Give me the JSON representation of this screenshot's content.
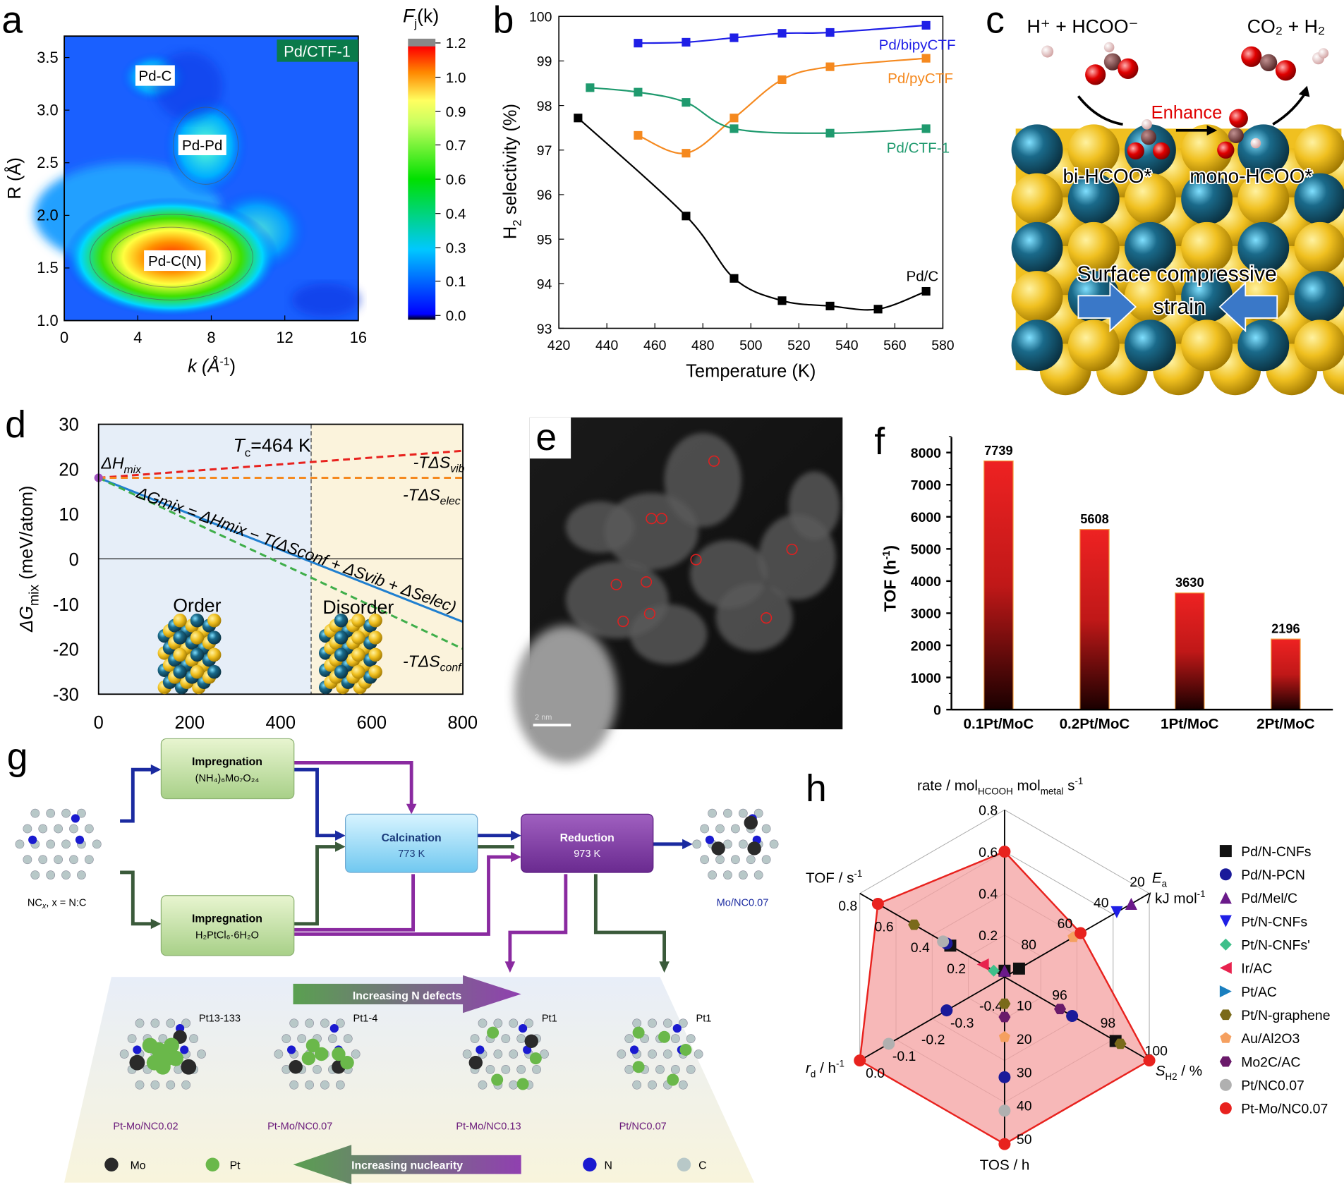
{
  "panels": {
    "a": "a",
    "b": "b",
    "c": "c",
    "d": "d",
    "e": "e",
    "f": "f",
    "g": "g",
    "h": "h"
  },
  "panel_a": {
    "sample_label": "Pd/CTF-1",
    "peak_labels": [
      "Pd-C",
      "Pd-Pd",
      "Pd-C(N)"
    ],
    "xlabel": "k (Å",
    "xlabel_sup": "-1",
    "xlabel_end": ")",
    "ylabel": "R (Å)",
    "x_ticks": [
      "0",
      "4",
      "8",
      "12",
      "16"
    ],
    "y_ticks": [
      "1.0",
      "1.5",
      "2.0",
      "2.5",
      "3.0",
      "3.5"
    ],
    "colorbar_title": "F",
    "colorbar_title_sub": "j",
    "colorbar_title_end": "(k)",
    "colorbar_ticks": [
      "0.0",
      "0.1",
      "0.3",
      "0.4",
      "0.6",
      "0.7",
      "0.9",
      "1.0",
      "1.2"
    ]
  },
  "chart_data": [
    {
      "panel": "b",
      "type": "line",
      "xlabel": "Temperature (K)",
      "ylabel": "H2 selectivity (%)",
      "xlim": [
        420,
        580
      ],
      "ylim": [
        93,
        100
      ],
      "x_ticks": [
        420,
        440,
        460,
        480,
        500,
        520,
        540,
        560,
        580
      ],
      "y_ticks": [
        93,
        94,
        95,
        96,
        97,
        98,
        99,
        100
      ],
      "series": [
        {
          "name": "Pd/bipyCTF",
          "color": "#1f1fe6",
          "x": [
            453,
            473,
            493,
            513,
            533,
            573
          ],
          "y": [
            99.4,
            99.42,
            99.52,
            99.62,
            99.64,
            99.8
          ]
        },
        {
          "name": "Pd/pyCTF",
          "color": "#f5891f",
          "x": [
            453,
            473,
            493,
            513,
            533,
            573
          ],
          "y": [
            97.33,
            96.93,
            97.72,
            98.58,
            98.87,
            99.06
          ]
        },
        {
          "name": "Pd/CTF-1",
          "color": "#1f9a6e",
          "x": [
            433,
            453,
            473,
            493,
            533,
            573
          ],
          "y": [
            98.4,
            98.3,
            98.07,
            97.48,
            97.38,
            97.48
          ]
        },
        {
          "name": "Pd/C",
          "color": "#000000",
          "x": [
            428,
            473,
            493,
            513,
            533,
            553,
            573
          ],
          "y": [
            97.72,
            95.52,
            94.12,
            93.62,
            93.5,
            93.43,
            93.83
          ]
        }
      ]
    },
    {
      "panel": "d",
      "type": "line",
      "xlabel": "",
      "ylabel": "ΔG",
      "ylabel_sub": "mix",
      "ylabel_end": " (meV/atom)",
      "xlim": [
        0,
        800
      ],
      "ylim": [
        -30,
        30
      ],
      "x_ticks": [
        0,
        200,
        400,
        600,
        800
      ],
      "y_ticks": [
        -30,
        -20,
        -10,
        0,
        10,
        20,
        30
      ],
      "tc_value": 464,
      "tc_label": "T",
      "tc_sub": "c",
      "tc_end": "=464 K",
      "order_label": "Order",
      "disorder_label": "Disorder",
      "dh_label": "ΔH",
      "dh_sub": "mix",
      "equation": "ΔGmix = ΔHmix − T(ΔSconf + ΔSvib + ΔSelec)",
      "series": [
        {
          "name": "-TΔSvib",
          "label": "-TΔS",
          "label_sub": "vib",
          "color": "#e8221e",
          "dash": true,
          "x": [
            0,
            800
          ],
          "y": [
            18,
            24
          ]
        },
        {
          "name": "-TΔSelec",
          "label": "-TΔS",
          "label_sub": "elec",
          "color": "#f5891f",
          "dash": true,
          "x": [
            0,
            800
          ],
          "y": [
            18,
            18
          ]
        },
        {
          "name": "ΔGmix",
          "color": "#1f7fd0",
          "dash": false,
          "x": [
            0,
            800
          ],
          "y": [
            18,
            -14
          ]
        },
        {
          "name": "-TΔSconf",
          "label": "-TΔS",
          "label_sub": "conf",
          "color": "#3fae4a",
          "dash": true,
          "x": [
            0,
            800
          ],
          "y": [
            18,
            -20
          ]
        }
      ]
    },
    {
      "panel": "f",
      "type": "bar",
      "ylabel": "TOF (h",
      "ylabel_sup": "-1",
      "ylabel_end": ")",
      "ylim": [
        0,
        8000
      ],
      "y_ticks": [
        0,
        1000,
        2000,
        3000,
        4000,
        5000,
        6000,
        7000,
        8000
      ],
      "categories": [
        "0.1Pt/MoC",
        "0.2Pt/MoC",
        "1Pt/MoC",
        "2Pt/MoC"
      ],
      "values": [
        7739,
        5608,
        3630,
        2196
      ],
      "data_labels": [
        "7739",
        "5608",
        "3630",
        "2196"
      ],
      "color": "#e8221e"
    },
    {
      "panel": "h",
      "type": "radar",
      "axes": [
        {
          "label": "rate / mol",
          "sub1": "HCOOH",
          "mid": " mol",
          "sub2": "metal",
          "end": " s",
          "sup": "-1",
          "range": [
            0,
            0.8
          ],
          "ticks": [
            "0.2",
            "0.4",
            "0.6",
            "0.8"
          ]
        },
        {
          "label": "E",
          "sub1": "a",
          "end": "/ kJ mol",
          "sup": "-1",
          "range": [
            100,
            20
          ],
          "ticks": [
            "80",
            "60",
            "40",
            "20"
          ]
        },
        {
          "label": "S",
          "sub1": "H2",
          "end": " / %",
          "range": [
            94,
            100
          ],
          "ticks": [
            "96",
            "98",
            "100"
          ]
        },
        {
          "label": "TOS / h",
          "range": [
            0,
            50
          ],
          "ticks": [
            "10",
            "20",
            "30",
            "40",
            "50"
          ]
        },
        {
          "label": "r",
          "sub1": "d",
          "end": " / h",
          "sup": "-1",
          "range": [
            -0.5,
            0.0
          ],
          "ticks": [
            "-0.4",
            "-0.3",
            "-0.2",
            "-0.1",
            "0.0"
          ]
        },
        {
          "label": "TOF / s",
          "sup": "-1",
          "range": [
            0,
            0.8
          ],
          "ticks": [
            "0.2",
            "0.4",
            "0.6",
            "0.8"
          ]
        }
      ],
      "series": [
        {
          "name": "Pd/N-CNFs",
          "marker": "square",
          "color": "#111111",
          "values": [
            0.03,
            92,
            98.6,
            null,
            null,
            0.3
          ]
        },
        {
          "name": "Pd/N-PCN",
          "marker": "circle",
          "color": "#1a1a9a",
          "values": [
            null,
            null,
            96.8,
            30,
            -0.3,
            0.32
          ]
        },
        {
          "name": "Pd/Mel/C",
          "marker": "triangle-up",
          "color": "#6a1a8a",
          "values": [
            0.03,
            30,
            null,
            null,
            null,
            null
          ]
        },
        {
          "name": "Pt/N-CNFs",
          "marker": "triangle-down",
          "color": "#1f1fe6",
          "values": [
            null,
            38,
            null,
            null,
            null,
            null
          ]
        },
        {
          "name": "Pt/N-CNFs'",
          "marker": "diamond",
          "color": "#3fbf8a",
          "values": [
            null,
            null,
            null,
            null,
            null,
            0.06
          ]
        },
        {
          "name": "Ir/AC",
          "marker": "triangle-left",
          "color": "#e8224e",
          "values": [
            null,
            null,
            null,
            null,
            null,
            0.12
          ]
        },
        {
          "name": "Pt/AC",
          "marker": "triangle-right",
          "color": "#1a7fbf",
          "values": [
            null,
            null,
            null,
            null,
            null,
            null
          ]
        },
        {
          "name": "Pt/N-graphene",
          "marker": "hexagon",
          "color": "#7a6a1a",
          "values": [
            null,
            null,
            98.8,
            8,
            null,
            0.5
          ]
        },
        {
          "name": "Au/Al2O3",
          "marker": "pentagon",
          "color": "#f5a060",
          "values": [
            null,
            62,
            null,
            18,
            null,
            null
          ]
        },
        {
          "name": "Mo2C/AC",
          "marker": "hexagon",
          "color": "#6a1a6a",
          "values": [
            null,
            null,
            96.3,
            12,
            null,
            null
          ]
        },
        {
          "name": "Pt/NC0.07",
          "marker": "circle",
          "color": "#b0b0b0",
          "values": [
            null,
            null,
            null,
            40,
            -0.1,
            0.34
          ]
        },
        {
          "name": "Pt-Mo/NC0.07",
          "marker": "circle",
          "color": "#e8221e",
          "values": [
            0.6,
            58,
            100,
            50,
            0.0,
            0.7
          ],
          "filled_area": true
        }
      ]
    }
  ],
  "panel_c": {
    "reactants": "H⁺ + HCOO⁻",
    "products": "CO₂ + H₂",
    "enhance": "Enhance",
    "bi": "bi-HCOO*",
    "mono": "mono-HCOO*",
    "strain1": "Surface compressive",
    "strain2": "strain"
  },
  "panel_e": {
    "scale_bar": "2 nm"
  },
  "panel_f_legend": {},
  "panel_g": {
    "start_label": "NC",
    "start_sub": "x",
    "start_end": ", x = N:C",
    "impreg1_title": "Impregnation",
    "impreg1_sub": "(NH₄)₆Mo₇O₂₄",
    "impreg2_title": "Impregnation",
    "impreg2_sub": "H₂PtCl₆·6H₂O",
    "calc_title": "Calcination",
    "calc_sub": "773 K",
    "red_title": "Reduction",
    "red_sub": "973 K",
    "product": "Mo/NC0.07",
    "increasing_defects": "Increasing N defects",
    "increasing_nuclearity": "Increasing nuclearity",
    "clusters": [
      {
        "size": "Pt13-133",
        "name": "Pt-Mo/NC0.02"
      },
      {
        "size": "Pt1-4",
        "name": "Pt-Mo/NC0.07"
      },
      {
        "size": "Pt1",
        "name": "Pt-Mo/NC0.13"
      },
      {
        "size": "Pt1",
        "name": "Pt/NC0.07"
      }
    ],
    "legend": [
      "Mo",
      "Pt",
      "N",
      "C"
    ]
  }
}
